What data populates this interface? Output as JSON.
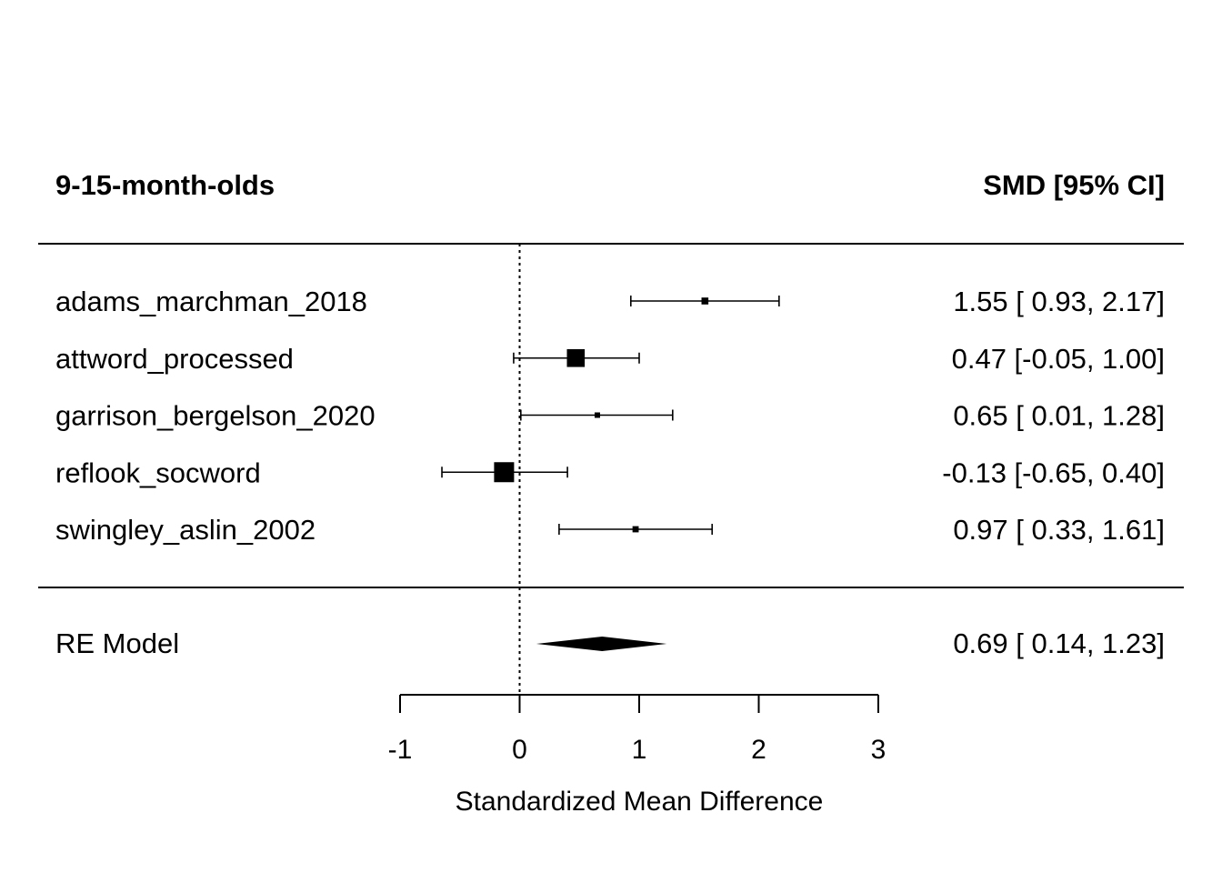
{
  "chart_data": {
    "type": "forest",
    "group_label": "9-15-month-olds",
    "effect_header": "SMD [95% CI]",
    "xlabel": "Standardized Mean Difference",
    "xlim": [
      -1,
      3
    ],
    "ticks": [
      -1,
      0,
      1,
      2,
      3
    ],
    "tick_labels": [
      "-1",
      "0",
      "1",
      "2",
      "3"
    ],
    "reference_line": 0,
    "studies": [
      {
        "name": "adams_marchman_2018",
        "estimate": 1.55,
        "ci_low": 0.93,
        "ci_high": 2.17,
        "weight": 0.14,
        "label": "1.55 [ 0.93, 2.17]"
      },
      {
        "name": "attword_processed",
        "estimate": 0.47,
        "ci_low": -0.05,
        "ci_high": 1.0,
        "weight": 0.29,
        "label": "0.47 [-0.05, 1.00]"
      },
      {
        "name": "garrison_bergelson_2020",
        "estimate": 0.65,
        "ci_low": 0.01,
        "ci_high": 1.28,
        "weight": 0.12,
        "label": "0.65 [ 0.01, 1.28]"
      },
      {
        "name": "reflook_socword",
        "estimate": -0.13,
        "ci_low": -0.65,
        "ci_high": 0.4,
        "weight": 0.32,
        "label": "-0.13 [-0.65, 0.40]"
      },
      {
        "name": "swingley_aslin_2002",
        "estimate": 0.97,
        "ci_low": 0.33,
        "ci_high": 1.61,
        "weight": 0.13,
        "label": "0.97 [ 0.33, 1.61]"
      }
    ],
    "summary": {
      "name": "RE Model",
      "estimate": 0.69,
      "ci_low": 0.14,
      "ci_high": 1.23,
      "label": "0.69 [ 0.14, 1.23]"
    }
  }
}
